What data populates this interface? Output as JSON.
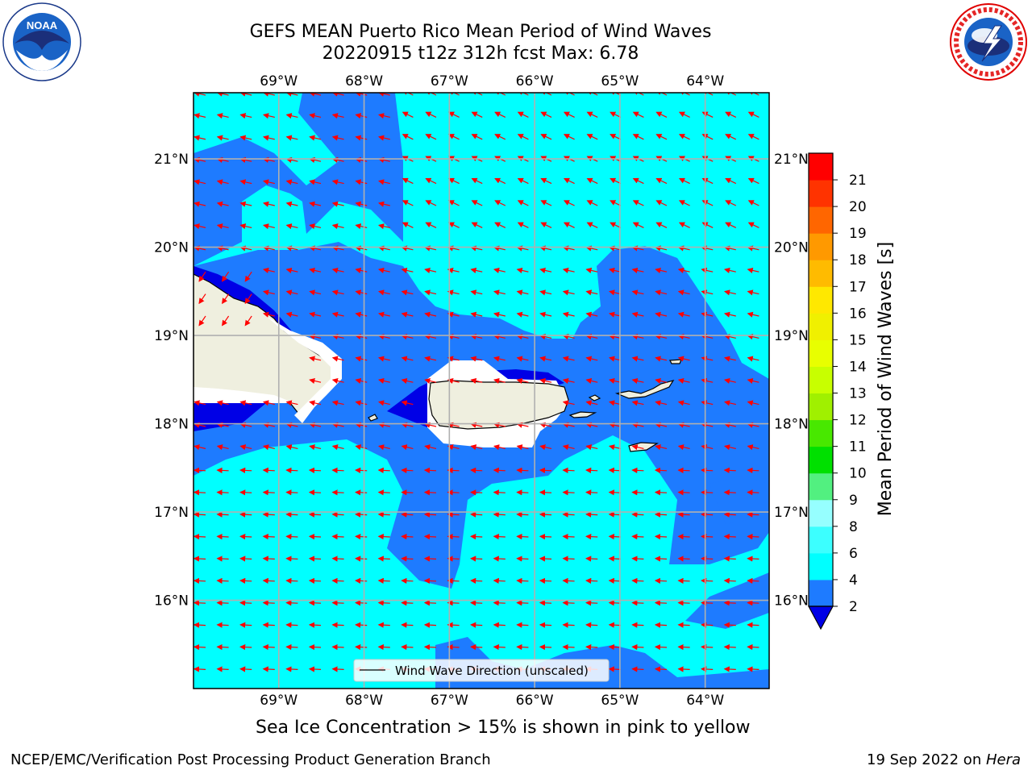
{
  "header": {
    "title_line1": "GEFS MEAN Puerto Rico Mean Period of Wind Waves",
    "title_line2": "20220915 t12z 312h fcst   Max: 6.78"
  },
  "logos": {
    "left": "noaa-logo",
    "left_text": "NOAA",
    "right": "national-weather-service-logo"
  },
  "map": {
    "lon_labels": [
      "69°W",
      "68°W",
      "67°W",
      "66°W",
      "65°W",
      "64°W"
    ],
    "lat_labels": [
      "21°N",
      "20°N",
      "19°N",
      "18°N",
      "17°N",
      "16°N"
    ],
    "lon_values": [
      -69,
      -68,
      -67,
      -66,
      -65,
      -64
    ],
    "lat_values": [
      21,
      20,
      19,
      18,
      17,
      16
    ],
    "extent": {
      "lon_min": -70.0,
      "lon_max": -63.25,
      "lat_min": 15.0,
      "lat_max": 21.75
    },
    "grid": true,
    "legend_label": "Wind Wave Direction (unscaled)",
    "arrow_color": "#ff0000",
    "land_color": "#efefdf",
    "ocean_colors": {
      "2-4": "#1e7bff",
      "4-6": "#00ffff",
      "below_2": "#0000e6"
    }
  },
  "colorbar": {
    "title": "Mean Period of Wind Waves [s]",
    "ticks": [
      "2",
      "4",
      "6",
      "8",
      "9",
      "10",
      "11",
      "12",
      "13",
      "14",
      "15",
      "16",
      "17",
      "18",
      "19",
      "20",
      "21"
    ],
    "colors": [
      "#1e7bff",
      "#00ffff",
      "#3cffff",
      "#96ffff",
      "#52f080",
      "#00e000",
      "#48e800",
      "#a0f000",
      "#c8ff00",
      "#e8ff00",
      "#f0f000",
      "#ffe800",
      "#ffbb00",
      "#ff9900",
      "#ff6600",
      "#ff3300",
      "#ff0000"
    ],
    "extend_color": "#0000e6"
  },
  "notes": {
    "ice": "Sea Ice Concentration > 15% is shown in pink to yellow"
  },
  "footer": {
    "left": "NCEP/EMC/Verification Post Processing Product Generation Branch",
    "right_date": "19 Sep 2022 on ",
    "right_host": "Hera"
  }
}
